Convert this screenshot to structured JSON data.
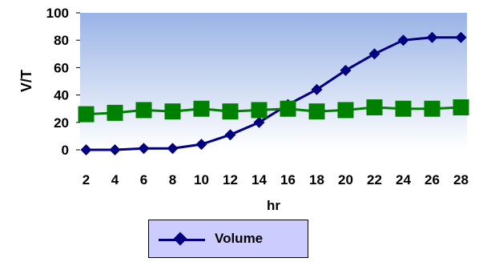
{
  "chart_data": {
    "type": "line",
    "title": "",
    "xlabel": "hr",
    "ylabel": "V/T",
    "ylim": [
      0,
      100
    ],
    "yticks": [
      0,
      20,
      40,
      60,
      80,
      100
    ],
    "grid": false,
    "x": [
      2,
      4,
      6,
      8,
      10,
      12,
      14,
      16,
      18,
      20,
      22,
      24,
      26,
      28
    ],
    "series": [
      {
        "name": "Volume",
        "marker": "diamond",
        "color": "#000080",
        "values": [
          0,
          0,
          1,
          1,
          4,
          11,
          20,
          33,
          44,
          58,
          70,
          80,
          82,
          82
        ]
      },
      {
        "marker": "square",
        "color": "#008000",
        "values": [
          26,
          27,
          29,
          28,
          30,
          28,
          29,
          30,
          28,
          29,
          31,
          30,
          30,
          31
        ]
      }
    ],
    "legend": {
      "position": "bottom",
      "entries": [
        "Volume"
      ]
    },
    "plot_background": {
      "top": "#99b3e6",
      "bottom": "#ffffff"
    }
  }
}
